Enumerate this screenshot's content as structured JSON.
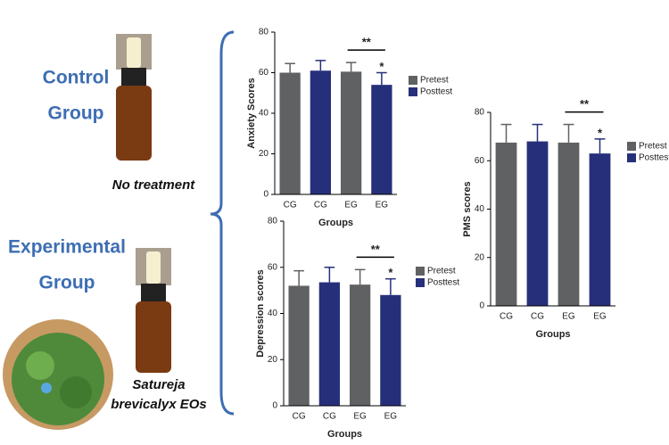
{
  "illustration": {
    "control_title": [
      "Control",
      "Group"
    ],
    "control_caption": "No treatment",
    "experimental_title": [
      "Experimental",
      "Group"
    ],
    "experimental_caption": [
      "Satureja",
      "brevicalyx EOs"
    ]
  },
  "chart_data": [
    {
      "type": "bar",
      "y_label": "Anxiety Scores",
      "x_label": "Groups",
      "categories": [
        "CG",
        "CG",
        "EG",
        "EG"
      ],
      "series": [
        {
          "name": "Pretest",
          "color": "#606163",
          "values": [
            60,
            null,
            60.5,
            null
          ],
          "errors": [
            4.5,
            null,
            4.5,
            null
          ]
        },
        {
          "name": "Posttest",
          "color": "#26307a",
          "values": [
            null,
            61,
            null,
            54
          ],
          "errors": [
            null,
            5,
            null,
            6
          ]
        }
      ],
      "ylim": [
        0,
        80
      ],
      "yticks": [
        0,
        20,
        40,
        60,
        80
      ],
      "annotations": [
        "**",
        "*"
      ]
    },
    {
      "type": "bar",
      "y_label": "Depression scores",
      "x_label": "Groups",
      "categories": [
        "CG",
        "CG",
        "EG",
        "EG"
      ],
      "series": [
        {
          "name": "Pretest",
          "color": "#606163",
          "values": [
            52,
            null,
            52.5,
            null
          ],
          "errors": [
            6.5,
            null,
            6.5,
            null
          ]
        },
        {
          "name": "Posttest",
          "color": "#26307a",
          "values": [
            null,
            53.5,
            null,
            48
          ],
          "errors": [
            null,
            6.5,
            null,
            7
          ]
        }
      ],
      "ylim": [
        0,
        80
      ],
      "yticks": [
        0,
        20,
        40,
        60,
        80
      ],
      "annotations": [
        "**",
        "*"
      ]
    },
    {
      "type": "bar",
      "y_label": "PMS scores",
      "x_label": "Groups",
      "categories": [
        "CG",
        "CG",
        "EG",
        "EG"
      ],
      "series": [
        {
          "name": "Pretest",
          "color": "#606163",
          "values": [
            67.5,
            null,
            67.5,
            null
          ],
          "errors": [
            7.5,
            null,
            7.5,
            null
          ]
        },
        {
          "name": "Posttest",
          "color": "#26307a",
          "values": [
            null,
            68,
            null,
            63
          ],
          "errors": [
            null,
            7,
            null,
            6
          ]
        }
      ],
      "ylim": [
        0,
        80
      ],
      "yticks": [
        0,
        20,
        40,
        60,
        80
      ],
      "annotations": [
        "**",
        "*"
      ]
    }
  ]
}
